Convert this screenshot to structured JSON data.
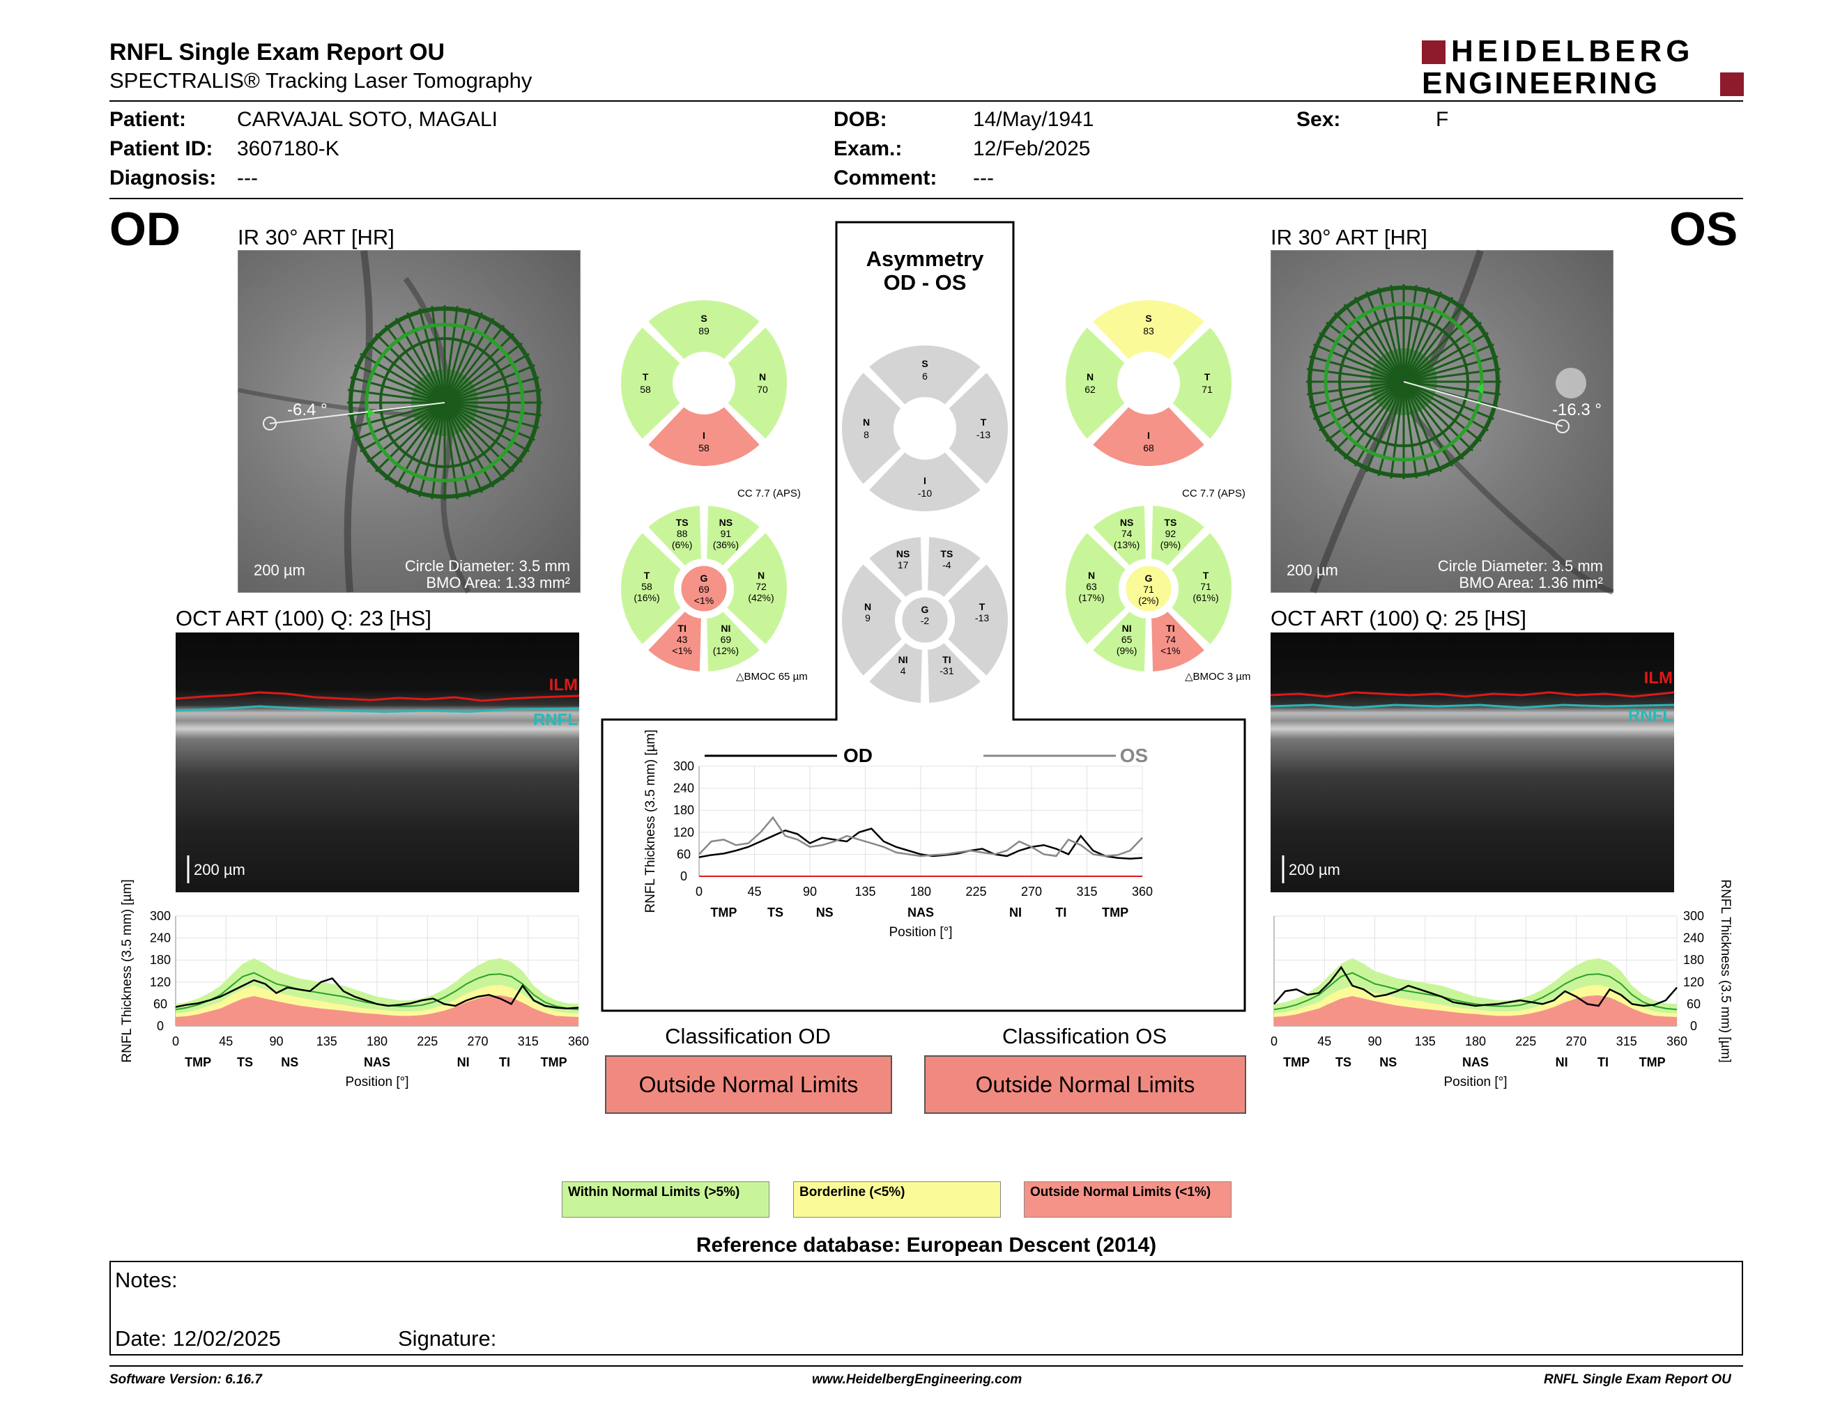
{
  "header": {
    "title": "RNFL Single Exam Report OU",
    "subtitle": "SPECTRALIS® Tracking Laser Tomography",
    "logo_line1": "HEIDELBERG",
    "logo_line2": "ENGINEERING"
  },
  "patient": {
    "patient_label": "Patient:",
    "patient_value": "CARVAJAL SOTO, MAGALI",
    "id_label": "Patient ID:",
    "id_value": "3607180-K",
    "diagnosis_label": "Diagnosis:",
    "diagnosis_value": "---",
    "dob_label": "DOB:",
    "dob_value": "14/May/1941",
    "exam_label": "Exam.:",
    "exam_value": "12/Feb/2025",
    "comment_label": "Comment:",
    "comment_value": "---",
    "sex_label": "Sex:",
    "sex_value": "F"
  },
  "od": {
    "eye": "OD",
    "ir_title": "IR 30° ART [HR]",
    "angle": "-6.4 °",
    "scale": "200 µm",
    "circle_diameter": "Circle Diameter: 3.5 mm",
    "bmo_area": "BMO Area: 1.33 mm²",
    "oct_title": "OCT ART (100) Q: 23 [HS]",
    "oct_scale": "200 µm",
    "ilm": "ILM",
    "rnfl": "RNFL"
  },
  "os": {
    "eye": "OS",
    "ir_title": "IR 30° ART [HR]",
    "angle": "-16.3 °",
    "scale": "200 µm",
    "circle_diameter": "Circle Diameter: 3.5 mm",
    "bmo_area": "BMO Area: 1.36 mm²",
    "oct_title": "OCT ART (100) Q: 25 [HS]",
    "oct_scale": "200 µm",
    "ilm": "ILM",
    "rnfl": "RNFL"
  },
  "asymmetry": {
    "title_line1": "Asymmetry",
    "title_line2": "OD - OS"
  },
  "colors": {
    "green": "#c9f59a",
    "yellow": "#fbfa98",
    "red": "#f59389",
    "grey": "#d4d4d4"
  },
  "circles": {
    "od_quad": {
      "S": [
        "S",
        "89"
      ],
      "T": [
        "T",
        "58"
      ],
      "N": [
        "N",
        "70"
      ],
      "I": [
        "I",
        "58"
      ],
      "colors": {
        "S": "green",
        "T": "green",
        "N": "green",
        "I": "red"
      }
    },
    "os_quad": {
      "S": [
        "S",
        "83"
      ],
      "N": [
        "N",
        "62"
      ],
      "T": [
        "T",
        "71"
      ],
      "I": [
        "I",
        "68"
      ],
      "colors": {
        "S": "yellow",
        "N": "green",
        "T": "green",
        "I": "red"
      }
    },
    "asym_quad": {
      "S": [
        "S",
        "6"
      ],
      "N": [
        "N",
        "8"
      ],
      "T": [
        "T",
        "-13"
      ],
      "I": [
        "I",
        "-10"
      ]
    },
    "od_sect": {
      "cc": "CC 7.7 (APS)",
      "bmo": "BMOC 65 µm",
      "TS": [
        "TS",
        "88",
        "(6%)"
      ],
      "NS": [
        "NS",
        "91",
        "(36%)"
      ],
      "T": [
        "T",
        "58",
        "(16%)"
      ],
      "G": [
        "G",
        "69",
        "<1%"
      ],
      "N": [
        "N",
        "72",
        "(42%)"
      ],
      "TI": [
        "TI",
        "43",
        "<1%"
      ],
      "NI": [
        "NI",
        "69",
        "(12%)"
      ],
      "colors": {
        "TS": "green",
        "NS": "green",
        "T": "green",
        "N": "green",
        "TI": "red",
        "NI": "green",
        "G": "red"
      }
    },
    "os_sect": {
      "cc": "CC 7.7 (APS)",
      "bmo": "BMOC 3 µm",
      "NS": [
        "NS",
        "74",
        "(13%)"
      ],
      "TS": [
        "TS",
        "92",
        "(9%)"
      ],
      "N": [
        "N",
        "63",
        "(17%)"
      ],
      "G": [
        "G",
        "71",
        "(2%)"
      ],
      "T": [
        "T",
        "71",
        "(61%)"
      ],
      "NI": [
        "NI",
        "65",
        "(9%)"
      ],
      "TI": [
        "TI",
        "74",
        "<1%"
      ],
      "colors": {
        "NS": "green",
        "TS": "green",
        "N": "green",
        "T": "green",
        "NI": "green",
        "TI": "red",
        "G": "yellow"
      }
    },
    "asym_sect": {
      "NS": [
        "NS",
        "17"
      ],
      "TS": [
        "TS",
        "-4"
      ],
      "N": [
        "N",
        "9"
      ],
      "G": [
        "G",
        "-2"
      ],
      "T": [
        "T",
        "-13"
      ],
      "NI": [
        "NI",
        "4"
      ],
      "TI": [
        "TI",
        "-31"
      ]
    }
  },
  "chart_data": [
    {
      "type": "line",
      "name": "od_profile",
      "xlabel": "Position [°]",
      "ylabel": "RNFL Thickness (3.5 mm) [µm]",
      "xlim": [
        0,
        360
      ],
      "ylim": [
        0,
        300
      ],
      "xticks": [
        0,
        45,
        90,
        135,
        180,
        225,
        270,
        315,
        360
      ],
      "yticks": [
        0,
        60,
        120,
        180,
        240,
        300
      ],
      "sector_labels": [
        [
          "TMP",
          20
        ],
        [
          "TS",
          62
        ],
        [
          "NS",
          102
        ],
        [
          "NAS",
          180
        ],
        [
          "NI",
          257
        ],
        [
          "TI",
          294
        ],
        [
          "TMP",
          338
        ]
      ],
      "x": [
        0,
        10,
        20,
        30,
        40,
        50,
        60,
        70,
        80,
        90,
        100,
        110,
        120,
        130,
        140,
        150,
        160,
        170,
        180,
        190,
        200,
        210,
        220,
        230,
        240,
        250,
        260,
        270,
        280,
        290,
        300,
        310,
        320,
        330,
        340,
        350,
        360
      ],
      "normal_upper": [
        60,
        65,
        75,
        90,
        110,
        140,
        170,
        185,
        170,
        150,
        140,
        130,
        125,
        120,
        115,
        110,
        100,
        90,
        80,
        75,
        70,
        70,
        75,
        85,
        100,
        120,
        145,
        165,
        180,
        185,
        175,
        150,
        110,
        85,
        70,
        62,
        60
      ],
      "normal_lower": [
        35,
        38,
        45,
        55,
        65,
        85,
        100,
        110,
        100,
        90,
        85,
        78,
        72,
        68,
        62,
        58,
        52,
        48,
        45,
        42,
        40,
        40,
        42,
        48,
        58,
        72,
        88,
        100,
        110,
        112,
        105,
        88,
        65,
        50,
        40,
        36,
        35
      ],
      "borderline_lower": [
        25,
        27,
        32,
        40,
        48,
        62,
        75,
        82,
        75,
        68,
        62,
        56,
        52,
        48,
        45,
        42,
        38,
        35,
        33,
        30,
        28,
        28,
        30,
        35,
        42,
        52,
        65,
        75,
        82,
        84,
        78,
        64,
        48,
        36,
        28,
        26,
        25
      ],
      "normative_mean": [
        45,
        50,
        58,
        70,
        85,
        110,
        135,
        145,
        130,
        115,
        108,
        100,
        95,
        90,
        85,
        80,
        72,
        65,
        60,
        56,
        54,
        54,
        57,
        65,
        78,
        95,
        115,
        130,
        140,
        142,
        135,
        115,
        85,
        65,
        54,
        48,
        45
      ],
      "series": [
        {
          "name": "OD",
          "values": [
            52,
            58,
            62,
            70,
            80,
            95,
            110,
            125,
            115,
            90,
            105,
            100,
            95,
            120,
            130,
            95,
            80,
            70,
            60,
            55,
            58,
            62,
            70,
            75,
            60,
            55,
            70,
            80,
            85,
            75,
            60,
            110,
            70,
            55,
            50,
            48,
            50
          ]
        }
      ]
    },
    {
      "type": "line",
      "name": "asymmetry_profile",
      "xlabel": "Position [°]",
      "ylabel": "RNFL Thickness (3.5 mm) [µm]",
      "xlim": [
        0,
        360
      ],
      "ylim": [
        0,
        300
      ],
      "xticks": [
        0,
        45,
        90,
        135,
        180,
        225,
        270,
        315,
        360
      ],
      "yticks": [
        0,
        60,
        120,
        180,
        240,
        300
      ],
      "sector_labels": [
        [
          "TMP",
          20
        ],
        [
          "TS",
          62
        ],
        [
          "NS",
          102
        ],
        [
          "NAS",
          180
        ],
        [
          "NI",
          257
        ],
        [
          "TI",
          294
        ],
        [
          "TMP",
          338
        ]
      ],
      "x": [
        0,
        10,
        20,
        30,
        40,
        50,
        60,
        70,
        80,
        90,
        100,
        110,
        120,
        130,
        140,
        150,
        160,
        170,
        180,
        190,
        200,
        210,
        220,
        230,
        240,
        250,
        260,
        270,
        280,
        290,
        300,
        310,
        320,
        330,
        340,
        350,
        360
      ],
      "series": [
        {
          "name": "OD",
          "values": [
            52,
            58,
            62,
            70,
            80,
            95,
            110,
            125,
            115,
            90,
            105,
            100,
            95,
            120,
            130,
            95,
            80,
            70,
            60,
            55,
            58,
            62,
            70,
            75,
            60,
            55,
            70,
            80,
            85,
            75,
            60,
            110,
            70,
            55,
            50,
            48,
            50
          ]
        },
        {
          "name": "OS",
          "values": [
            60,
            95,
            100,
            85,
            90,
            120,
            160,
            110,
            100,
            80,
            85,
            95,
            110,
            100,
            90,
            80,
            65,
            60,
            55,
            58,
            60,
            65,
            70,
            65,
            60,
            70,
            95,
            80,
            60,
            55,
            100,
            85,
            60,
            55,
            58,
            70,
            105
          ]
        }
      ]
    },
    {
      "type": "line",
      "name": "os_profile",
      "xlabel": "Position [°]",
      "ylabel": "RNFL Thickness (3.5 mm) [µm]",
      "xlim": [
        0,
        360
      ],
      "ylim": [
        0,
        300
      ],
      "xticks": [
        0,
        45,
        90,
        135,
        180,
        225,
        270,
        315,
        360
      ],
      "yticks": [
        0,
        60,
        120,
        180,
        240,
        300
      ],
      "sector_labels": [
        [
          "TMP",
          20
        ],
        [
          "TS",
          62
        ],
        [
          "NS",
          102
        ],
        [
          "NAS",
          180
        ],
        [
          "NI",
          257
        ],
        [
          "TI",
          294
        ],
        [
          "TMP",
          338
        ]
      ],
      "x": [
        0,
        10,
        20,
        30,
        40,
        50,
        60,
        70,
        80,
        90,
        100,
        110,
        120,
        130,
        140,
        150,
        160,
        170,
        180,
        190,
        200,
        210,
        220,
        230,
        240,
        250,
        260,
        270,
        280,
        290,
        300,
        310,
        320,
        330,
        340,
        350,
        360
      ],
      "normal_upper": [
        60,
        65,
        75,
        90,
        110,
        140,
        170,
        185,
        170,
        150,
        140,
        130,
        125,
        120,
        115,
        110,
        100,
        90,
        80,
        75,
        70,
        70,
        75,
        85,
        100,
        120,
        145,
        165,
        180,
        185,
        175,
        150,
        110,
        85,
        70,
        62,
        60
      ],
      "normal_lower": [
        35,
        38,
        45,
        55,
        65,
        85,
        100,
        110,
        100,
        90,
        85,
        78,
        72,
        68,
        62,
        58,
        52,
        48,
        45,
        42,
        40,
        40,
        42,
        48,
        58,
        72,
        88,
        100,
        110,
        112,
        105,
        88,
        65,
        50,
        40,
        36,
        35
      ],
      "borderline_lower": [
        25,
        27,
        32,
        40,
        48,
        62,
        75,
        82,
        75,
        68,
        62,
        56,
        52,
        48,
        45,
        42,
        38,
        35,
        33,
        30,
        28,
        28,
        30,
        35,
        42,
        52,
        65,
        75,
        82,
        84,
        78,
        64,
        48,
        36,
        28,
        26,
        25
      ],
      "normative_mean": [
        45,
        50,
        58,
        70,
        85,
        110,
        135,
        145,
        130,
        115,
        108,
        100,
        95,
        90,
        85,
        80,
        72,
        65,
        60,
        56,
        54,
        54,
        57,
        65,
        78,
        95,
        115,
        130,
        140,
        142,
        135,
        115,
        85,
        65,
        54,
        48,
        45
      ],
      "series": [
        {
          "name": "OS",
          "values": [
            60,
            95,
            100,
            85,
            90,
            120,
            160,
            110,
            100,
            80,
            85,
            95,
            110,
            100,
            90,
            80,
            65,
            60,
            55,
            58,
            60,
            65,
            70,
            65,
            60,
            70,
            95,
            80,
            60,
            55,
            100,
            85,
            60,
            55,
            58,
            70,
            105
          ]
        }
      ]
    }
  ],
  "classification": {
    "od_title": "Classification OD",
    "od_value": "Outside Normal Limits",
    "os_title": "Classification OS",
    "os_value": "Outside Normal Limits"
  },
  "legend": {
    "within": "Within Normal Limits (>5%)",
    "borderline": "Borderline (<5%)",
    "outside": "Outside Normal Limits (<1%)"
  },
  "reference": "Reference database: European Descent (2014)",
  "notes": {
    "notes_label": "Notes:",
    "date_label": "Date: 12/02/2025",
    "signature_label": "Signature:"
  },
  "footer": {
    "software": "Software Version: 6.16.7",
    "website": "www.HeidelbergEngineering.com",
    "report": "RNFL Single Exam Report OU"
  }
}
